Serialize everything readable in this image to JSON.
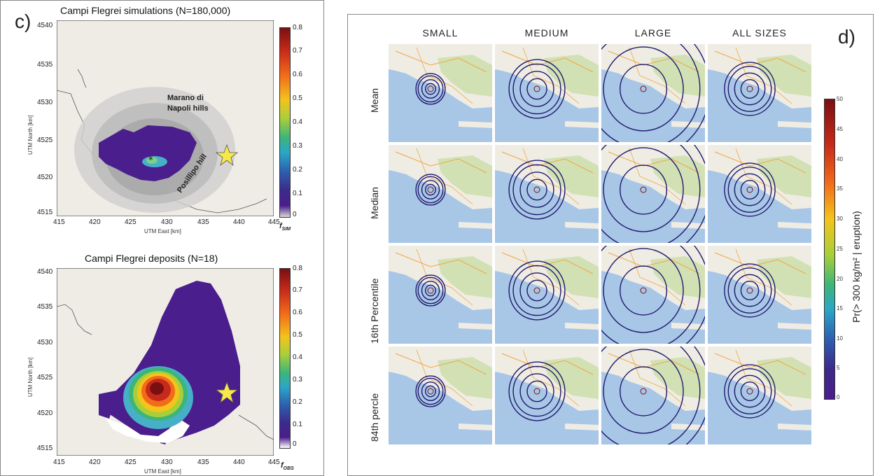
{
  "panel_c": {
    "letter": "c)",
    "top_plot": {
      "title": "Campi Flegrei simulations (N=180,000)",
      "x_label": "UTM East [km]",
      "y_label": "UTM North [km]",
      "x_ticks": [
        "415",
        "420",
        "425",
        "430",
        "435",
        "440",
        "445"
      ],
      "y_ticks": [
        "4540",
        "4535",
        "4530",
        "4525",
        "4520",
        "4515"
      ],
      "colorbar_ticks": [
        "0.8",
        "0.7",
        "0.6",
        "0.5",
        "0.4",
        "0.3",
        "0.2",
        "0.1",
        "0"
      ],
      "colorbar_label": "f",
      "colorbar_label_sub": "SIM",
      "annotations": {
        "marano": "Marano di",
        "napoli": "Napoli hills",
        "posillipo": "Posillipo hill"
      }
    },
    "bottom_plot": {
      "title": "Campi Flegrei deposits (N=18)",
      "x_label": "UTM East [km]",
      "y_label": "UTM North [km]",
      "x_ticks": [
        "415",
        "420",
        "425",
        "430",
        "435",
        "440",
        "445"
      ],
      "y_ticks": [
        "4540",
        "4535",
        "4530",
        "4525",
        "4520",
        "4515"
      ],
      "colorbar_ticks": [
        "0.8",
        "0.7",
        "0.6",
        "0.5",
        "0.4",
        "0.3",
        "0.2",
        "0.1",
        "0"
      ],
      "colorbar_label": "f",
      "colorbar_label_sub": "OBS"
    }
  },
  "panel_d": {
    "letter": "d)",
    "columns": [
      "SMALL",
      "MEDIUM",
      "LARGE",
      "ALL SIZES"
    ],
    "rows": [
      "Mean",
      "Median",
      "16th Percentile",
      "84th percle"
    ],
    "colorbar_label": "Pr(> 300 kg/m² | eruption)",
    "colorbar_ticks": [
      "50",
      "45",
      "40",
      "35",
      "30",
      "25",
      "20",
      "15",
      "10",
      "5",
      "0"
    ],
    "contour_color": "#1f1a6e",
    "contour_scale": {
      "SMALL": 0.22,
      "MEDIUM": 0.42,
      "LARGE": 1.0,
      "ALL SIZES": 0.38
    }
  },
  "colors": {
    "sea": "#a8c6e6",
    "land": "#efece4",
    "green_land": "#c9dfa8",
    "purple_deposit": "#4a1e8c",
    "star": "#f7e84a"
  }
}
